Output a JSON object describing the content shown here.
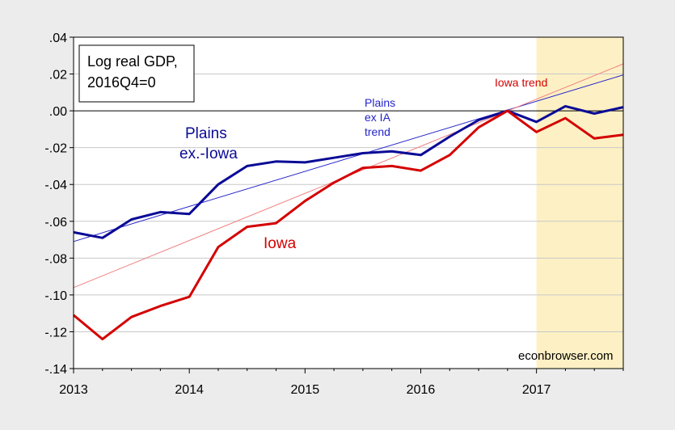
{
  "chart_data": {
    "type": "line",
    "title": "",
    "xlabel": "",
    "ylabel": "",
    "xlim": [
      2013.0,
      2017.75
    ],
    "ylim": [
      -0.14,
      0.04
    ],
    "y_ticks": [
      0.04,
      0.02,
      0.0,
      -0.02,
      -0.04,
      -0.06,
      -0.08,
      -0.1,
      -0.12,
      -0.14
    ],
    "y_tick_labels": [
      ".04",
      ".02",
      ".00",
      "-.02",
      "-.04",
      "-.06",
      "-.08",
      "-.10",
      "-.12",
      "-.14"
    ],
    "x_ticks": [
      2013,
      2014,
      2015,
      2016,
      2017
    ],
    "x_tick_labels": [
      "2013",
      "2014",
      "2015",
      "2016",
      "2017"
    ],
    "grid": true,
    "zero_line": 0,
    "shaded_region": {
      "x_start": 2017.0,
      "x_end": 2017.75,
      "color": "#fdf0c4"
    },
    "x": [
      2013.0,
      2013.25,
      2013.5,
      2013.75,
      2014.0,
      2014.25,
      2014.5,
      2014.75,
      2015.0,
      2015.25,
      2015.5,
      2015.75,
      2016.0,
      2016.25,
      2016.5,
      2016.75,
      2017.0,
      2017.25,
      2017.5,
      2017.75
    ],
    "series": [
      {
        "key": "plains",
        "color": "#0a0a96",
        "values": [
          -0.066,
          -0.069,
          -0.059,
          -0.055,
          -0.056,
          -0.04,
          -0.03,
          -0.0275,
          -0.028,
          -0.0255,
          -0.023,
          -0.022,
          -0.024,
          -0.014,
          -0.005,
          0.0,
          -0.006,
          0.0025,
          -0.0015,
          0.002
        ]
      },
      {
        "key": "iowa",
        "color": "#d40000",
        "values": [
          -0.111,
          -0.124,
          -0.112,
          -0.106,
          -0.101,
          -0.074,
          -0.063,
          -0.061,
          -0.049,
          -0.039,
          -0.031,
          -0.03,
          -0.0325,
          -0.024,
          -0.009,
          0.0,
          -0.0115,
          -0.004,
          -0.015,
          -0.013
        ]
      }
    ],
    "trends": [
      {
        "key": "plains_trend",
        "color": "#2424c8",
        "x": [
          2013.0,
          2017.75
        ],
        "values": [
          -0.071,
          0.0195
        ]
      },
      {
        "key": "iowa_trend",
        "color": "#f08080",
        "x": [
          2013.0,
          2017.75
        ],
        "values": [
          -0.096,
          0.0255
        ]
      }
    ],
    "legend": {
      "position": "top-left",
      "lines": [
        "Log real GDP,",
        "2016Q4=0"
      ]
    },
    "annotations": {
      "plains_lines": [
        "Plains",
        "ex.-Iowa"
      ],
      "plains_trend_lines": [
        "Plains",
        "ex IA",
        "trend"
      ],
      "iowa_label": "Iowa",
      "iowa_trend_label": "Iowa trend",
      "source": "econbrowser.com"
    },
    "colors": {
      "plot_background": "#ffffff",
      "page_background": "#ececec",
      "grid": "#c8c8c8",
      "plains_label": "#0a0a96",
      "iowa_label": "#d40000"
    }
  }
}
